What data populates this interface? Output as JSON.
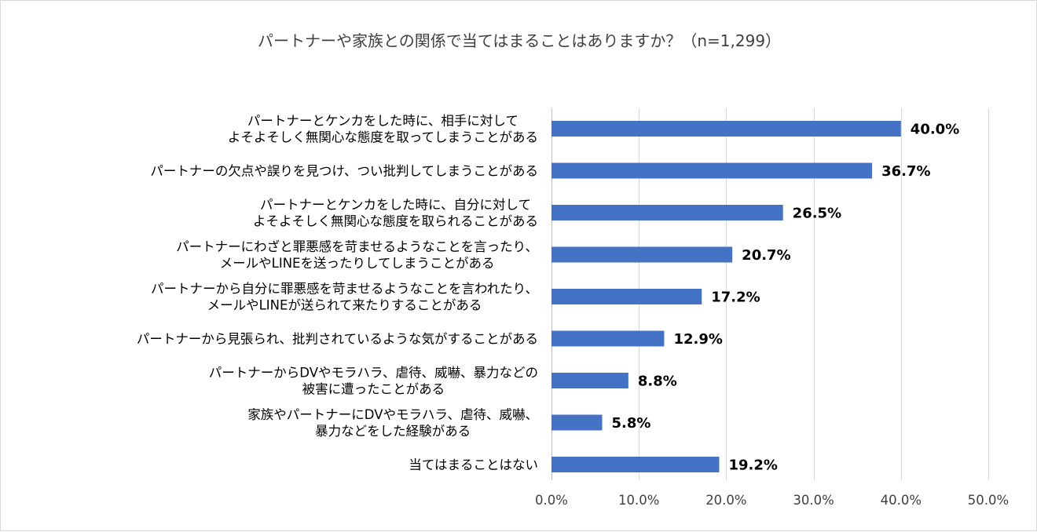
{
  "chart_data": {
    "type": "bar",
    "orientation": "horizontal",
    "title": "パートナーや家族との関係で当てはまることはありますか？（n=1,299）",
    "categories": [
      [
        "パートナーとケンカをした時に、相手に対して",
        "よそよそしく無関心な態度を取ってしまうことがある"
      ],
      [
        "パートナーの欠点や誤りを見つけ、つい批判してしまうことがある"
      ],
      [
        "パートナーとケンカをした時に、自分に対して",
        "よそよそしく無関心な態度を取られることがある"
      ],
      [
        "パートナーにわざと罪悪感を苛ませるようなことを言ったり、",
        "メールやLINEを送ったりしてしまうことがある"
      ],
      [
        "パートナーから自分に罪悪感を苛ませるようなことを言われたり、",
        "メールやLINEが送られて来たりすることがある"
      ],
      [
        "パートナーから見張られ、批判されているような気がすることがある"
      ],
      [
        "パートナーからDVやモラハラ、虐待、威嚇、暴力などの",
        "被害に遭ったことがある"
      ],
      [
        "家族やパートナーにDVやモラハラ、虐待、威嚇、",
        "暴力などをした経験がある"
      ],
      [
        "当てはまることはない"
      ]
    ],
    "values": [
      40.0,
      36.7,
      26.5,
      20.7,
      17.2,
      12.9,
      8.8,
      5.8,
      19.2
    ],
    "value_labels": [
      "40.0%",
      "36.7%",
      "26.5%",
      "20.7%",
      "17.2%",
      "12.9%",
      "8.8%",
      "5.8%",
      "19.2%"
    ],
    "xlim": [
      0,
      50
    ],
    "xticks": [
      0,
      10,
      20,
      30,
      40,
      50
    ],
    "xtick_labels": [
      "0.0%",
      "10.0%",
      "20.0%",
      "30.0%",
      "40.0%",
      "50.0%"
    ],
    "grid": true,
    "legend": "none",
    "colors": {
      "bar": "#4472c4",
      "grid": "#d9d9d9",
      "title": "#404040",
      "tick": "#404040",
      "label": "#000000"
    }
  }
}
